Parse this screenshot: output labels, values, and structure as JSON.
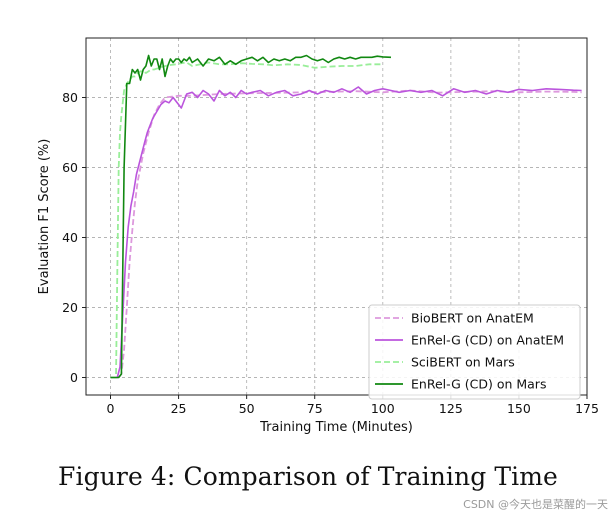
{
  "chart_data": {
    "type": "line",
    "xlabel": "Training Time (Minutes)",
    "ylabel": "Evaluation F1 Score (%)",
    "xlim": [
      -9,
      175
    ],
    "ylim": [
      -5,
      97
    ],
    "xticks": [
      0,
      25,
      50,
      75,
      100,
      125,
      150,
      175
    ],
    "yticks": [
      0,
      20,
      40,
      60,
      80
    ],
    "grid": true,
    "legend_position": "lower-right",
    "series": [
      {
        "name": "BioBERT on AnatEM",
        "color": "#dd99dd",
        "style": "dashed",
        "x": [
          0,
          3,
          4,
          5,
          6,
          7,
          8,
          9,
          10,
          12,
          14,
          16,
          18,
          20,
          25,
          30,
          40,
          50,
          60,
          70,
          80,
          90,
          100,
          110,
          120,
          130,
          140,
          150,
          160,
          170,
          173
        ],
        "y": [
          0,
          0,
          1,
          8,
          20,
          33,
          42,
          50,
          56,
          64,
          70,
          75,
          78,
          80,
          80.5,
          80.5,
          81,
          81.2,
          81.3,
          81.5,
          81.6,
          81.8,
          81.5,
          82,
          81.4,
          81.6,
          81.8,
          81.5,
          81.7,
          81.6,
          81.5
        ]
      },
      {
        "name": "EnRel-G (CD) on AnatEM",
        "color": "#bb55dd",
        "style": "solid",
        "x": [
          0,
          2.5,
          3.5,
          4.5,
          5.5,
          6.5,
          7.5,
          8.5,
          9.5,
          10.5,
          11.5,
          12.5,
          13.5,
          14.5,
          15.5,
          17,
          18.5,
          20,
          21.5,
          23,
          24.5,
          26,
          28,
          30,
          32,
          34,
          36,
          38,
          40,
          42,
          44,
          46,
          48,
          50,
          52,
          55,
          58,
          61,
          64,
          67,
          70,
          73,
          76,
          79,
          82,
          85,
          88,
          91,
          94,
          97,
          100,
          103,
          106,
          110,
          114,
          118,
          122,
          126,
          130,
          134,
          138,
          142,
          146,
          150,
          155,
          160,
          165,
          170,
          173
        ],
        "y": [
          0,
          0,
          3,
          18,
          33,
          43,
          49,
          53,
          58,
          61,
          64,
          67,
          70,
          72,
          74,
          76,
          78,
          79,
          78.5,
          80,
          78.5,
          77,
          81,
          81.5,
          80,
          82,
          81,
          79,
          82,
          80.5,
          81.5,
          80,
          82,
          81,
          81.5,
          82,
          80.5,
          81.5,
          82,
          80.5,
          81,
          82,
          81,
          82,
          81.5,
          82.5,
          81.5,
          83,
          81,
          82,
          82.5,
          82,
          81.5,
          82,
          81.5,
          82,
          80.5,
          82.5,
          81.5,
          82,
          81,
          82,
          81.5,
          82.3,
          82,
          82.5,
          82.3,
          82.1,
          82
        ]
      },
      {
        "name": "SciBERT on Mars",
        "color": "#99ee99",
        "style": "dashed",
        "x": [
          0,
          2,
          2.5,
          3,
          3.5,
          4,
          5,
          6,
          7,
          8,
          9,
          10,
          11,
          12,
          13,
          14,
          15,
          16,
          18,
          20,
          22,
          24,
          26,
          28,
          30,
          33,
          36,
          40,
          44,
          48,
          52,
          56,
          60,
          65,
          70,
          75,
          80,
          85,
          90,
          95,
          100
        ],
        "y": [
          0,
          0,
          30,
          60,
          70,
          75,
          82,
          84,
          85,
          86,
          86,
          87,
          87.5,
          87.5,
          87,
          87.5,
          88,
          88,
          88.5,
          89,
          89.3,
          89.5,
          89.8,
          90,
          89,
          89.5,
          90,
          89.5,
          89.5,
          89.8,
          89.6,
          89.5,
          89.2,
          89.5,
          89.3,
          88.5,
          88.8,
          89,
          89,
          89.5,
          89.5
        ]
      },
      {
        "name": "EnRel-G (CD) on Mars",
        "color": "#118811",
        "style": "solid",
        "x": [
          0,
          3,
          4,
          5,
          6,
          7,
          8,
          9,
          10,
          11,
          12,
          13,
          14,
          15,
          16,
          17,
          18,
          19,
          20,
          21,
          22,
          23,
          24,
          25,
          26,
          27,
          28,
          29,
          30,
          32,
          34,
          36,
          38,
          40,
          42,
          44,
          46,
          48,
          50,
          52,
          54,
          56,
          58,
          60,
          62,
          64,
          66,
          68,
          70,
          72,
          74,
          76,
          78,
          80,
          82,
          84,
          86,
          88,
          90,
          92,
          94,
          96,
          98,
          100,
          103
        ],
        "y": [
          0,
          0,
          1,
          60,
          84,
          84,
          88,
          87,
          88,
          85,
          88,
          89,
          92,
          89,
          91,
          91,
          88,
          91,
          86,
          89,
          91,
          90,
          91,
          91,
          90,
          91,
          90.5,
          91.5,
          90,
          91,
          89,
          91,
          90.5,
          91.5,
          89.5,
          90.5,
          89.5,
          90.5,
          91,
          91.5,
          90.5,
          91.5,
          90,
          91,
          90.5,
          91,
          90.5,
          91.5,
          91.5,
          92,
          91,
          90.5,
          91,
          90,
          91,
          91.5,
          91,
          91.5,
          91,
          91.5,
          91.5,
          91.5,
          91.8,
          91.6,
          91.5
        ]
      }
    ]
  },
  "caption": "Figure 4: Comparison of Training Time",
  "watermark": "CSDN @今天也是菜醒的一天"
}
